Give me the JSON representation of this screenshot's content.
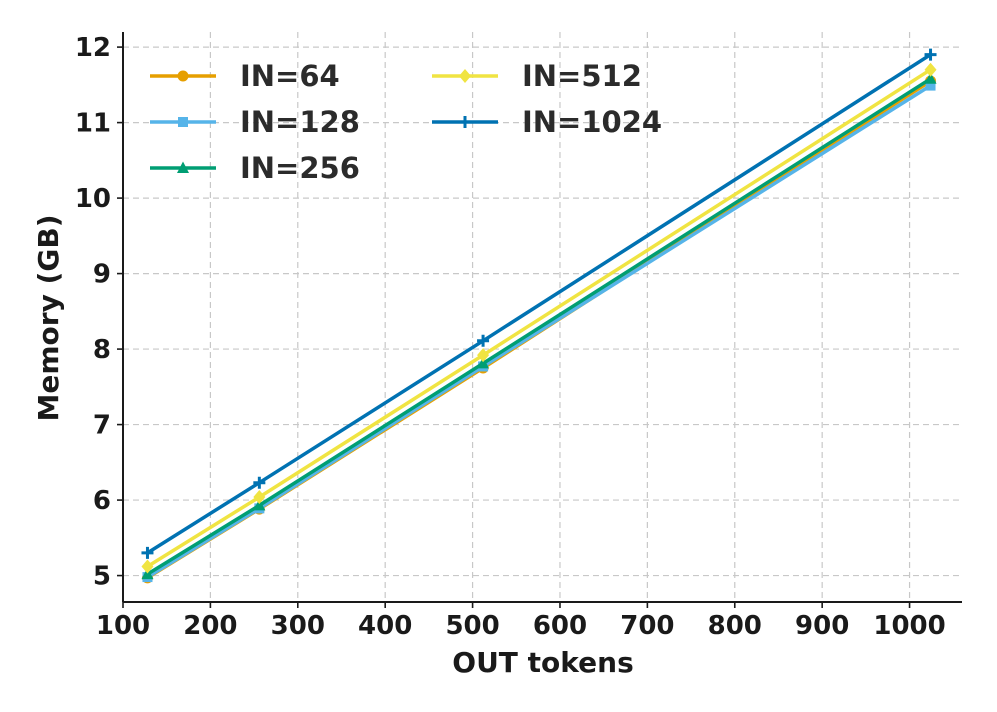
{
  "chart_data": {
    "type": "line",
    "title": "",
    "xlabel": "OUT tokens",
    "ylabel": "Memory (GB)",
    "xlim": [
      100,
      1060
    ],
    "ylim": [
      4.65,
      12.2
    ],
    "xticks": [
      100,
      200,
      300,
      400,
      500,
      600,
      700,
      800,
      900,
      1000
    ],
    "yticks": [
      5,
      6,
      7,
      8,
      9,
      10,
      11,
      12
    ],
    "grid": true,
    "legend_position": "upper-left, two columns",
    "x": [
      128,
      256,
      512,
      1024
    ],
    "series": [
      {
        "name": "IN=64",
        "values": [
          4.97,
          5.88,
          7.75,
          11.55
        ],
        "color": "#E69F00",
        "marker": "circle"
      },
      {
        "name": "IN=128",
        "values": [
          4.98,
          5.89,
          7.77,
          11.49
        ],
        "color": "#56B4E9",
        "marker": "square"
      },
      {
        "name": "IN=256",
        "values": [
          5.02,
          5.93,
          7.81,
          11.58
        ],
        "color": "#009E73",
        "marker": "triangle"
      },
      {
        "name": "IN=512",
        "values": [
          5.12,
          6.04,
          7.92,
          11.7
        ],
        "color": "#F0E442",
        "marker": "diamond"
      },
      {
        "name": "IN=1024",
        "values": [
          5.3,
          6.23,
          8.11,
          11.9
        ],
        "color": "#0072B2",
        "marker": "plus"
      }
    ]
  }
}
